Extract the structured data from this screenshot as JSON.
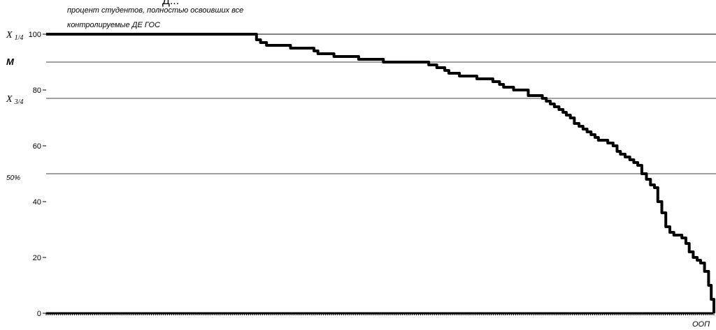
{
  "header_fragment": "Д...",
  "chart_data": {
    "type": "line",
    "ylabel_lines": [
      "процент студентов, полностью освоивших все",
      "контролируемые ДЕ ГОС"
    ],
    "xlabel": "ООП",
    "ylim": [
      0,
      100
    ],
    "y_ticks": [
      0,
      20,
      40,
      60,
      80,
      100
    ],
    "grid": false,
    "reference_lines": [
      {
        "name": "x_1/4",
        "base": "X",
        "sub": "1/4",
        "value": 100
      },
      {
        "name": "M",
        "label": "M",
        "value": 90
      },
      {
        "name": "x_3/4",
        "base": "X",
        "sub": "3/4",
        "value": 77
      },
      {
        "name": "50%",
        "label": "50%",
        "value": 50
      }
    ],
    "xlim": [
      0,
      100
    ],
    "series": [
      {
        "x": [
          0,
          31.1,
          31.5,
          32.1,
          33.0,
          36.6,
          37.3,
          40.1,
          40.7,
          42.5,
          43.1,
          46.2,
          46.8,
          49.9,
          50.5,
          53.0,
          53.7,
          57.3,
          57.9,
          58.5,
          59.1,
          59.7,
          60.3,
          61.3,
          61.9,
          63.9,
          64.5,
          66.4,
          66.9,
          67.9,
          68.5,
          69.4,
          70.0,
          71.6,
          72.2,
          73.7,
          74.3,
          74.9,
          75.5,
          76.1,
          76.8,
          77.4,
          77.9,
          78.5,
          79.1,
          79.8,
          80.4,
          81.0,
          81.6,
          82.2,
          82.7,
          83.5,
          84.1,
          84.9,
          85.5,
          86.0,
          86.7,
          87.4,
          88.0,
          88.6,
          89.2,
          89.9,
          90.5,
          91.1,
          91.6,
          92.2,
          92.8,
          93.4,
          94.0,
          94.6,
          95.2,
          95.8,
          96.3,
          96.9,
          97.5,
          98.0,
          98.6,
          99.2,
          99.6,
          100
        ],
        "y": [
          100,
          100,
          98,
          97,
          96,
          95,
          95,
          94,
          93,
          93,
          92,
          92,
          91,
          91,
          90,
          90,
          90,
          89,
          89,
          88,
          88,
          87,
          86,
          86,
          85,
          85,
          84,
          84,
          83,
          82,
          81,
          81,
          80,
          80,
          78,
          78,
          77,
          76,
          75,
          74,
          73,
          72,
          71,
          70,
          68,
          67,
          66,
          65,
          64,
          63,
          62,
          62,
          61,
          60,
          58,
          57,
          56,
          55,
          54,
          53,
          50,
          48,
          46,
          45,
          40,
          36,
          31,
          29,
          28,
          28,
          27,
          25,
          22,
          20,
          19,
          18,
          15,
          10,
          5,
          0
        ]
      }
    ]
  }
}
